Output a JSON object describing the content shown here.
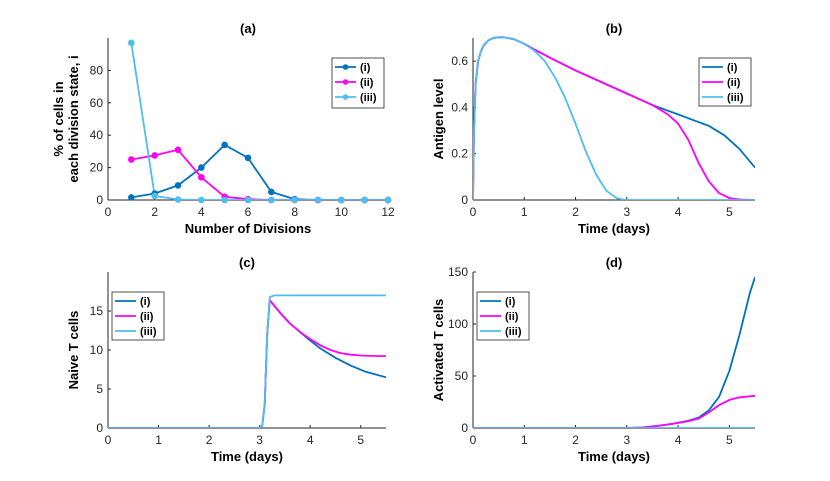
{
  "chart_data": [
    {
      "id": "a",
      "type": "line",
      "title": "(a)",
      "xlabel": "Number of Divisions",
      "ylabel": [
        "% of cells in",
        "each division state, i"
      ],
      "xlim": [
        0,
        12
      ],
      "ylim": [
        0,
        100
      ],
      "xticks": [
        0,
        2,
        4,
        6,
        8,
        10,
        12
      ],
      "yticks": [
        0,
        20,
        40,
        60,
        80
      ],
      "legend": "top-right",
      "markers": true,
      "series": [
        {
          "name": "(i)",
          "color": "#0072BD",
          "x": [
            1,
            2,
            3,
            4,
            5,
            6,
            7,
            8,
            9,
            10,
            11,
            12
          ],
          "y": [
            1.6,
            4,
            9,
            20,
            34,
            26,
            5,
            0.5,
            0,
            0,
            0,
            0
          ]
        },
        {
          "name": "(ii)",
          "color": "#FF00FF",
          "x": [
            1,
            2,
            3,
            4,
            5,
            6,
            7,
            8,
            9,
            10,
            11,
            12
          ],
          "y": [
            25,
            27.5,
            31,
            14,
            2,
            0.5,
            0,
            0,
            0,
            0,
            0,
            0
          ]
        },
        {
          "name": "(iii)",
          "color": "#4DBEEE",
          "x": [
            1,
            2,
            3,
            4,
            5,
            6,
            7,
            8,
            9,
            10,
            11,
            12
          ],
          "y": [
            97,
            2.5,
            0.3,
            0,
            0,
            0,
            0,
            0,
            0,
            0,
            0,
            0
          ]
        }
      ]
    },
    {
      "id": "b",
      "type": "line",
      "title": "(b)",
      "xlabel": "Time (days)",
      "ylabel": [
        "Antigen level"
      ],
      "xlim": [
        0,
        5.5
      ],
      "ylim": [
        0,
        0.7
      ],
      "xticks": [
        0,
        1,
        2,
        3,
        4,
        5
      ],
      "yticks": [
        0,
        0.2,
        0.4,
        0.6
      ],
      "legend": "top-right",
      "markers": false,
      "series": [
        {
          "name": "(i)",
          "color": "#0072BD",
          "x": [
            0,
            0.02,
            0.05,
            0.1,
            0.15,
            0.2,
            0.3,
            0.4,
            0.5,
            0.6,
            0.8,
            1,
            1.2,
            1.5,
            2,
            2.5,
            3,
            3.5,
            4,
            4.3,
            4.6,
            4.9,
            5.2,
            5.5
          ],
          "y": [
            0,
            0.3,
            0.5,
            0.6,
            0.64,
            0.665,
            0.69,
            0.7,
            0.703,
            0.703,
            0.695,
            0.675,
            0.65,
            0.615,
            0.56,
            0.51,
            0.46,
            0.41,
            0.37,
            0.345,
            0.32,
            0.28,
            0.22,
            0.14
          ]
        },
        {
          "name": "(ii)",
          "color": "#FF00FF",
          "x": [
            0,
            0.02,
            0.05,
            0.1,
            0.15,
            0.2,
            0.3,
            0.4,
            0.5,
            0.6,
            0.8,
            1,
            1.2,
            1.5,
            2,
            2.5,
            3,
            3.5,
            3.8,
            4,
            4.2,
            4.4,
            4.6,
            4.8,
            5,
            5.2,
            5.5
          ],
          "y": [
            0,
            0.3,
            0.5,
            0.6,
            0.64,
            0.665,
            0.69,
            0.7,
            0.703,
            0.703,
            0.695,
            0.675,
            0.65,
            0.615,
            0.56,
            0.51,
            0.46,
            0.41,
            0.37,
            0.33,
            0.26,
            0.16,
            0.08,
            0.03,
            0.008,
            0.002,
            0
          ]
        },
        {
          "name": "(iii)",
          "color": "#4DBEEE",
          "x": [
            0,
            0.02,
            0.05,
            0.1,
            0.15,
            0.2,
            0.3,
            0.4,
            0.5,
            0.6,
            0.8,
            1,
            1.2,
            1.4,
            1.6,
            1.8,
            2,
            2.2,
            2.4,
            2.6,
            2.8,
            2.9,
            3,
            3.2,
            3.5,
            4,
            4.5,
            5,
            5.5
          ],
          "y": [
            0,
            0.3,
            0.5,
            0.6,
            0.64,
            0.665,
            0.69,
            0.7,
            0.703,
            0.703,
            0.695,
            0.675,
            0.645,
            0.6,
            0.53,
            0.44,
            0.33,
            0.21,
            0.11,
            0.04,
            0.008,
            0.003,
            0,
            0,
            0,
            0,
            0,
            0,
            0
          ]
        }
      ]
    },
    {
      "id": "c",
      "type": "line",
      "title": "(c)",
      "xlabel": "Time (days)",
      "ylabel": [
        "Naive T cells"
      ],
      "xlim": [
        0,
        5.5
      ],
      "ylim": [
        0,
        20
      ],
      "xticks": [
        0,
        1,
        2,
        3,
        4,
        5
      ],
      "yticks": [
        0,
        5,
        10,
        15
      ],
      "legend": "top-left",
      "markers": false,
      "series": [
        {
          "name": "(i)",
          "color": "#0072BD",
          "x": [
            0,
            3,
            3.05,
            3.1,
            3.15,
            3.2,
            3.4,
            3.6,
            3.8,
            4,
            4.2,
            4.5,
            4.8,
            5.1,
            5.5
          ],
          "y": [
            0,
            0,
            0.3,
            3,
            12,
            16.4,
            14.8,
            13.4,
            12.3,
            11.2,
            10.2,
            9,
            8,
            7.2,
            6.5
          ]
        },
        {
          "name": "(ii)",
          "color": "#FF00FF",
          "x": [
            0,
            3,
            3.05,
            3.1,
            3.15,
            3.2,
            3.4,
            3.6,
            3.8,
            4,
            4.2,
            4.4,
            4.6,
            4.8,
            5,
            5.2,
            5.5
          ],
          "y": [
            0,
            0,
            0.3,
            3,
            12,
            16.4,
            14.8,
            13.4,
            12.3,
            11.4,
            10.6,
            10,
            9.6,
            9.4,
            9.3,
            9.25,
            9.2
          ]
        },
        {
          "name": "(iii)",
          "color": "#4DBEEE",
          "x": [
            0,
            3,
            3.05,
            3.1,
            3.15,
            3.2,
            3.3,
            3.5,
            4,
            4.5,
            5,
            5.5
          ],
          "y": [
            0,
            0,
            0.3,
            3,
            12,
            16.8,
            17,
            17,
            17,
            17,
            17,
            17
          ]
        }
      ]
    },
    {
      "id": "d",
      "type": "line",
      "title": "(d)",
      "xlabel": "Time (days)",
      "ylabel": [
        "Activated T cells"
      ],
      "xlim": [
        0,
        5.5
      ],
      "ylim": [
        0,
        150
      ],
      "xticks": [
        0,
        1,
        2,
        3,
        4,
        5
      ],
      "yticks": [
        0,
        50,
        100,
        150
      ],
      "legend": "top-left",
      "markers": false,
      "series": [
        {
          "name": "(i)",
          "color": "#0072BD",
          "x": [
            0,
            3,
            3.3,
            3.6,
            3.9,
            4.2,
            4.4,
            4.6,
            4.8,
            5,
            5.2,
            5.4,
            5.5
          ],
          "y": [
            0,
            0,
            0.5,
            2,
            4,
            7,
            10,
            17,
            30,
            55,
            90,
            130,
            145
          ]
        },
        {
          "name": "(ii)",
          "color": "#FF00FF",
          "x": [
            0,
            3,
            3.3,
            3.6,
            3.9,
            4.2,
            4.4,
            4.6,
            4.8,
            5,
            5.2,
            5.4,
            5.5
          ],
          "y": [
            0,
            0,
            0.5,
            2,
            4,
            6.5,
            9,
            15,
            22,
            27,
            29.5,
            30.5,
            31
          ]
        },
        {
          "name": "(iii)",
          "color": "#4DBEEE",
          "x": [
            0,
            5.5
          ],
          "y": [
            0,
            0
          ]
        }
      ]
    }
  ]
}
